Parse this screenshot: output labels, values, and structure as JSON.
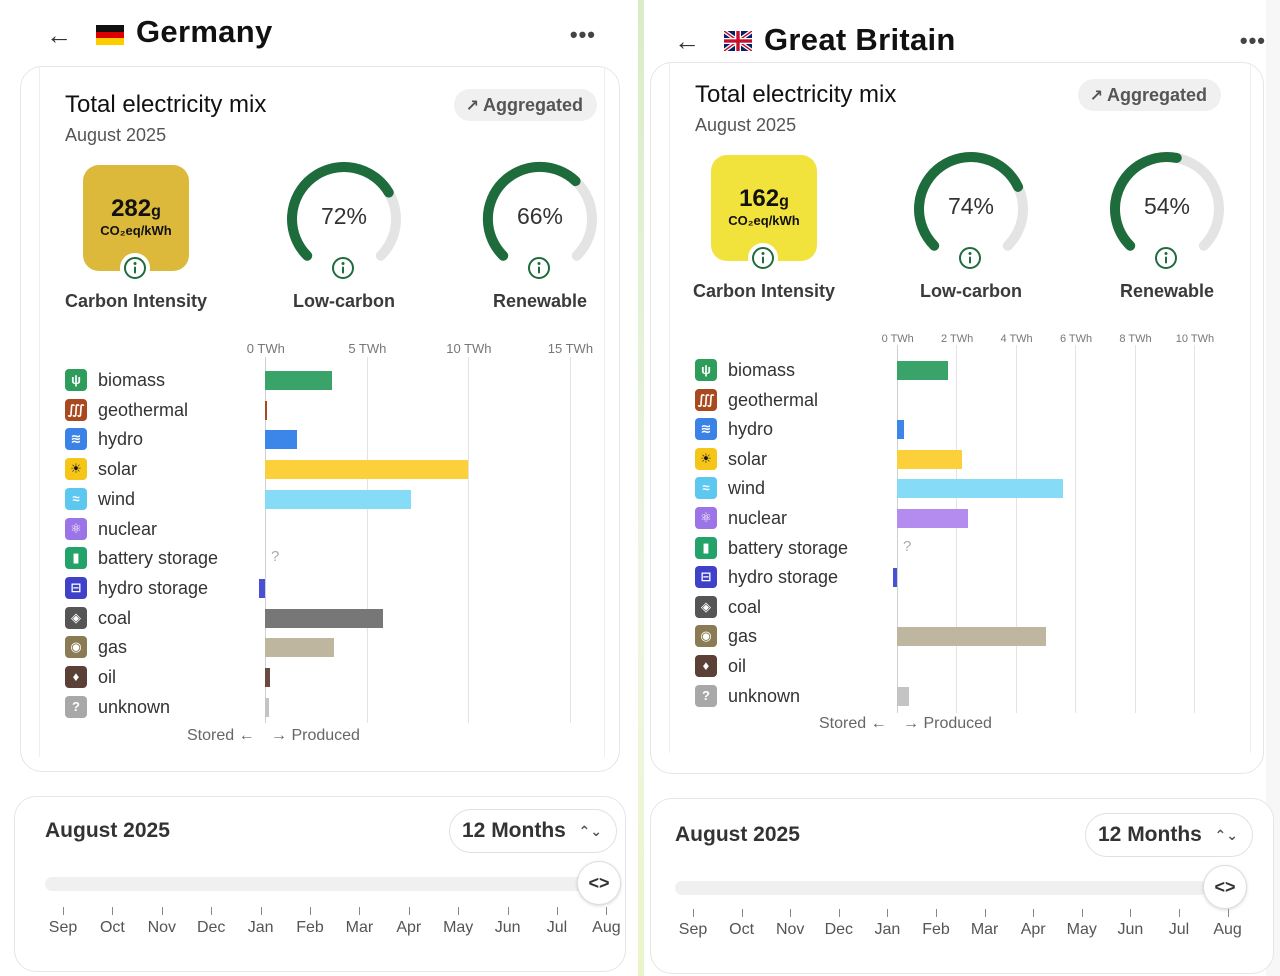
{
  "panels": [
    {
      "country": "Germany",
      "mix_title": "Total electricity mix",
      "month": "August 2025",
      "aggregated_label": "Aggregated",
      "carbon_value": "282",
      "carbon_value_unit": "g",
      "carbon_unit": "CO₂eq/kWh",
      "carbon_label": "Carbon Intensity",
      "carbon_color": "#dcb93a",
      "low_carbon_pct": 72,
      "low_carbon_text": "72%",
      "low_carbon_label": "Low-carbon",
      "renewable_pct": 66,
      "renewable_text": "66%",
      "renewable_label": "Renewable",
      "stored_label": "Stored ←",
      "produced_label": "→ Produced",
      "time_title": "August 2025",
      "period": "12 Months",
      "months": [
        "Sep",
        "Oct",
        "Nov",
        "Dec",
        "Jan",
        "Feb",
        "Mar",
        "Apr",
        "May",
        "Jun",
        "Jul",
        "Aug"
      ]
    },
    {
      "country": "Great Britain",
      "mix_title": "Total electricity mix",
      "month": "August 2025",
      "aggregated_label": "Aggregated",
      "carbon_value": "162",
      "carbon_value_unit": "g",
      "carbon_unit": "CO₂eq/kWh",
      "carbon_label": "Carbon Intensity",
      "carbon_color": "#f2e23c",
      "low_carbon_pct": 74,
      "low_carbon_text": "74%",
      "low_carbon_label": "Low-carbon",
      "renewable_pct": 54,
      "renewable_text": "54%",
      "renewable_label": "Renewable",
      "stored_label": "Stored ←",
      "produced_label": "→ Produced",
      "time_title": "August 2025",
      "period": "12 Months",
      "months": [
        "Sep",
        "Oct",
        "Nov",
        "Dec",
        "Jan",
        "Feb",
        "Mar",
        "Apr",
        "May",
        "Jun",
        "Jul",
        "Aug"
      ]
    }
  ],
  "sources": [
    {
      "name": "biomass",
      "color": "#2e9c5a",
      "icon": "leaf-icon",
      "glyph": "ψ"
    },
    {
      "name": "geothermal",
      "color": "#a8491f",
      "icon": "geothermal-icon",
      "glyph": "∭"
    },
    {
      "name": "hydro",
      "color": "#3b82e6",
      "icon": "water-icon",
      "glyph": "≋"
    },
    {
      "name": "solar",
      "color": "#f5c518",
      "icon": "sun-icon",
      "glyph": "☀"
    },
    {
      "name": "wind",
      "color": "#5cc8f0",
      "icon": "wind-icon",
      "glyph": "≈"
    },
    {
      "name": "nuclear",
      "color": "#9b74e8",
      "icon": "atom-icon",
      "glyph": "⚛"
    },
    {
      "name": "battery storage",
      "color": "#23a36a",
      "icon": "battery-icon",
      "glyph": "▮"
    },
    {
      "name": "hydro storage",
      "color": "#3f42c9",
      "icon": "hydro-storage-icon",
      "glyph": "⊟"
    },
    {
      "name": "coal",
      "color": "#555555",
      "icon": "coal-icon",
      "glyph": "◈"
    },
    {
      "name": "gas",
      "color": "#8a7b55",
      "icon": "gas-icon",
      "glyph": "◉"
    },
    {
      "name": "oil",
      "color": "#5a4036",
      "icon": "oil-icon",
      "glyph": "♦"
    },
    {
      "name": "unknown",
      "color": "#a8a8a8",
      "icon": "question-icon",
      "glyph": "?"
    }
  ],
  "chart_data": [
    {
      "type": "bar",
      "title": "Germany — Total electricity mix, August 2025",
      "unit": "TWh",
      "xlim": [
        0,
        16.2
      ],
      "ticks": [
        "0 TWh",
        "5 TWh",
        "10 TWh",
        "15 TWh"
      ],
      "tick_values": [
        0,
        5,
        10,
        15
      ],
      "categories": [
        "biomass",
        "geothermal",
        "hydro",
        "solar",
        "wind",
        "nuclear",
        "battery storage",
        "hydro storage",
        "coal",
        "gas",
        "oil",
        "unknown"
      ],
      "values": [
        3.3,
        0.05,
        1.6,
        10.0,
        7.2,
        0,
        null,
        -0.3,
        5.8,
        3.4,
        0.25,
        0.2
      ],
      "bar_colors": [
        "#3aa36a",
        "#a8491f",
        "#3b86e8",
        "#fcd03a",
        "#86dcf6",
        "#a88be6",
        "#23a36a",
        "#4750d6",
        "#777777",
        "#bfb6a0",
        "#6a4a40",
        "#c4c4c4"
      ]
    },
    {
      "type": "bar",
      "title": "Great Britain — Total electricity mix, August 2025",
      "unit": "TWh",
      "xlim": [
        0,
        10.9
      ],
      "ticks": [
        "0 TWh",
        "2 TWh",
        "4 TWh",
        "6 TWh",
        "8 TWh",
        "10 TWh"
      ],
      "tick_values": [
        0,
        2,
        4,
        6,
        8,
        10
      ],
      "categories": [
        "biomass",
        "geothermal",
        "hydro",
        "solar",
        "wind",
        "nuclear",
        "battery storage",
        "hydro storage",
        "coal",
        "gas",
        "oil",
        "unknown"
      ],
      "values": [
        1.7,
        0,
        0.25,
        2.2,
        5.6,
        2.4,
        null,
        -0.15,
        0,
        5.0,
        0,
        0.4
      ],
      "bar_colors": [
        "#3aa36a",
        "#a8491f",
        "#3b86e8",
        "#fcd03a",
        "#86dcf6",
        "#b48cf0",
        "#23a36a",
        "#4750d6",
        "#777777",
        "#bfb6a0",
        "#6a4a40",
        "#c4c4c4"
      ]
    }
  ],
  "colors": {
    "gauge_fill": "#1e6b3c",
    "gauge_track": "#e4e4e4",
    "info_icon": "#1e6b3c"
  }
}
